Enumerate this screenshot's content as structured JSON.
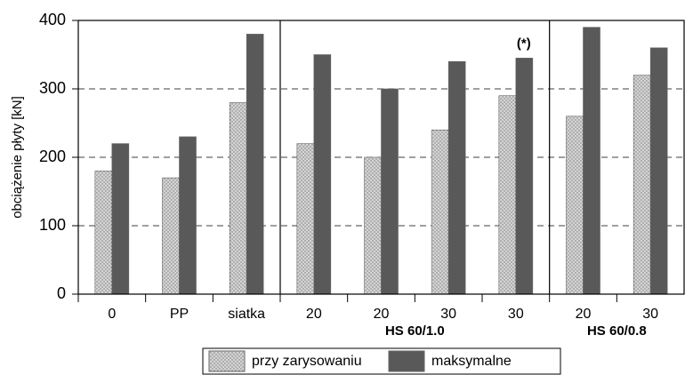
{
  "chart_data": {
    "type": "bar",
    "y_label": "obciążenie płyty [kN]",
    "categories": [
      "0",
      "PP",
      "siatka",
      "20",
      "20",
      "30",
      "30",
      "20",
      "30"
    ],
    "groups": [
      {
        "label": "HS 60/1.0"
      },
      {
        "label": "HS 60/0.8"
      }
    ],
    "series": [
      {
        "name": "przy zarysowaniu",
        "color": "#d4d4d4",
        "values": [
          180,
          170,
          280,
          220,
          200,
          240,
          290,
          260,
          320
        ]
      },
      {
        "name": "maksymalne",
        "color": "#595959",
        "values": [
          220,
          230,
          380,
          350,
          300,
          340,
          345,
          390,
          360
        ]
      }
    ],
    "annotations": [
      {
        "text": "(*)"
      }
    ],
    "ylim": [
      0,
      400
    ],
    "yticks": [
      0,
      100,
      200,
      300,
      400
    ],
    "grid": true
  }
}
